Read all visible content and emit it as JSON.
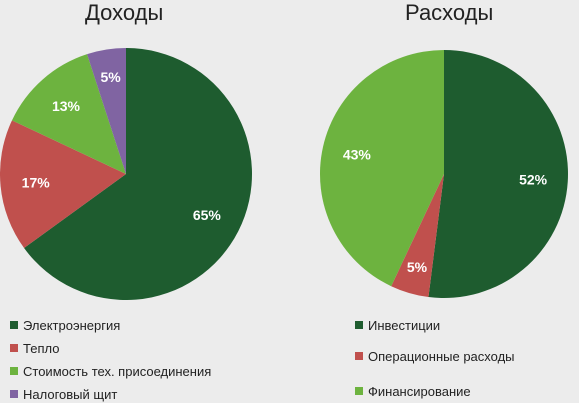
{
  "chart_data": [
    {
      "type": "pie",
      "title": "Доходы",
      "categories": [
        "Электроэнергия",
        "Тепло",
        "Стоимость тех. присоединения",
        "Налоговый щит"
      ],
      "values": [
        65,
        17,
        13,
        5
      ],
      "labels": [
        "65%",
        "17%",
        "13%",
        "5%"
      ],
      "colors": [
        "#1e5c2f",
        "#c0504d",
        "#6db33f",
        "#8064a2"
      ]
    },
    {
      "type": "pie",
      "title": "Расходы",
      "categories": [
        "Инвестиции",
        "Операционные расходы",
        "Финансирование"
      ],
      "values": [
        52,
        5,
        43
      ],
      "labels": [
        "52%",
        "5%",
        "43%"
      ],
      "colors": [
        "#1e5c2f",
        "#c0504d",
        "#6db33f"
      ]
    }
  ]
}
